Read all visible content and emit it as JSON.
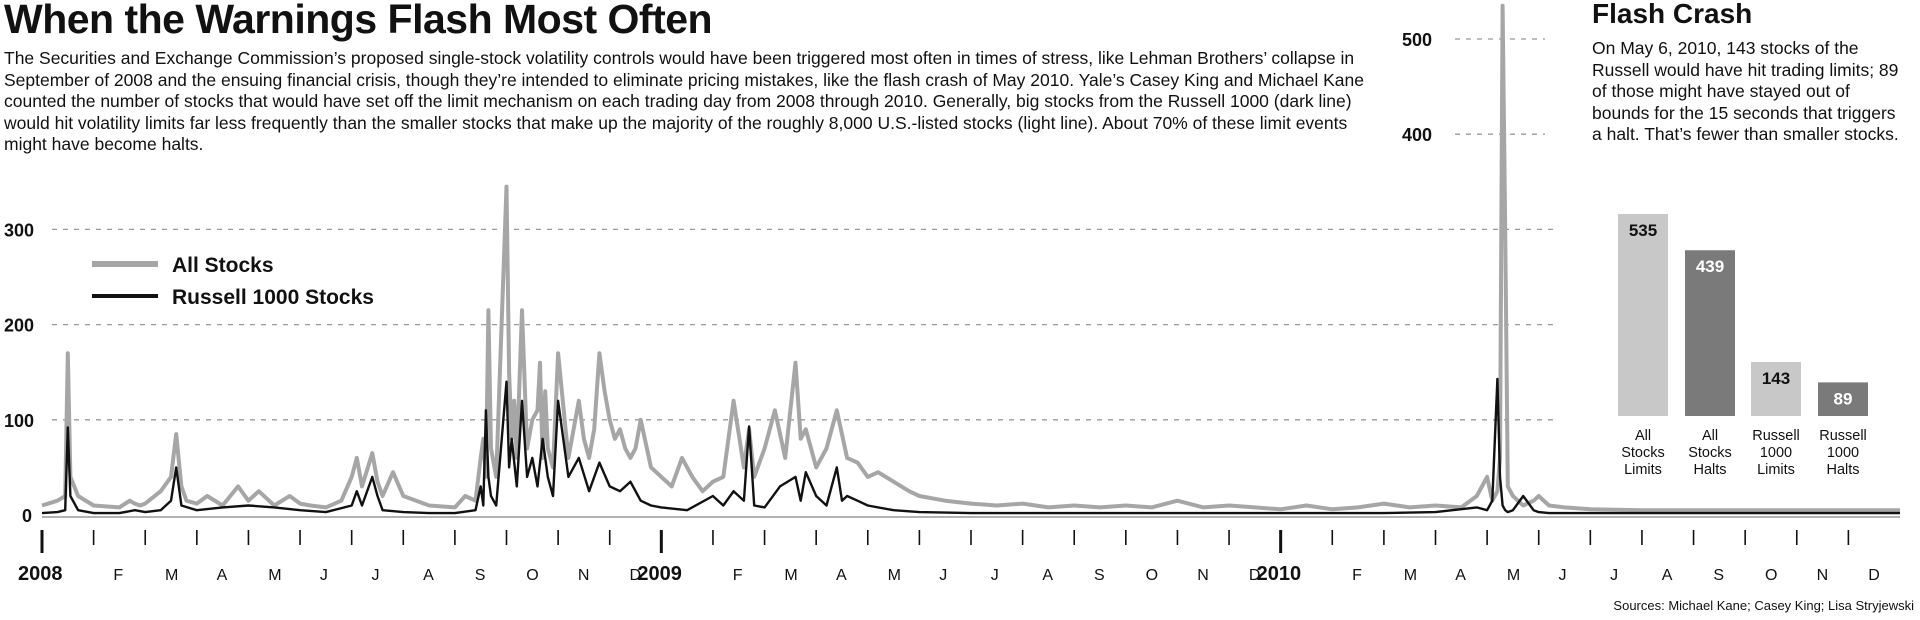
{
  "header": {
    "title": "When the Warnings Flash Most Often",
    "intro": "The Securities and Exchange Commission’s proposed single-stock volatility controls would have been triggered most often in times of stress, like Lehman Brothers’ collapse in September of 2008 and the ensuing financial crisis, though they’re intended to eliminate pricing mistakes, like the flash crash of May 2010. Yale’s Casey King and Michael Kane counted the number of stocks that would have set off the limit mechanism on each trading day from 2008 through 2010. Generally, big stocks from the Russell 1000 (dark line) would hit volatility limits far less frequently than the smaller stocks that make up the majority of the roughly 8,000 U.S.-listed stocks (light line). About 70% of these limit events might have become halts."
  },
  "sidebar": {
    "title": "Flash Crash",
    "text": "On May 6, 2010, 143 stocks of the Russell would have hit trading limits; 89 of those might have stayed out of bounds for the 15 seconds that triggers a halt. That’s fewer than smaller stocks."
  },
  "source": "Sources: Michael Kane; Casey King; Lisa Stryjewski",
  "colors": {
    "all_stocks": "#a6a6a6",
    "russell": "#111111",
    "grid": "#999999",
    "bar_light": "#c8c8c8",
    "bar_dark": "#7a7a7a"
  },
  "chart_data": [
    {
      "type": "line",
      "x_unit": "month",
      "ylim": [
        0,
        550
      ],
      "xlim": [
        0,
        36
      ],
      "grid": "horizontal dashed",
      "legend_position": "top-left",
      "yticks": [
        0,
        100,
        200,
        300,
        400,
        500
      ],
      "ytick_labels": [
        "0",
        "100",
        "200",
        "300",
        "400",
        "500"
      ],
      "xtick_labels": [
        "2008",
        "F",
        "M",
        "A",
        "M",
        "J",
        "J",
        "A",
        "S",
        "O",
        "N",
        "D",
        "2009",
        "F",
        "M",
        "A",
        "M",
        "J",
        "J",
        "A",
        "S",
        "O",
        "N",
        "D",
        "2010",
        "F",
        "M",
        "A",
        "M",
        "J",
        "J",
        "A",
        "S",
        "O",
        "N",
        "D"
      ],
      "series": [
        {
          "name": "All Stocks",
          "x": [
            0,
            0.3,
            0.45,
            0.5,
            0.55,
            0.7,
            1,
            1.5,
            1.7,
            1.8,
            1.9,
            2,
            2.3,
            2.5,
            2.6,
            2.7,
            2.8,
            3,
            3.2,
            3.5,
            3.8,
            4,
            4.2,
            4.5,
            4.8,
            5,
            5.2,
            5.5,
            5.8,
            6,
            6.1,
            6.2,
            6.4,
            6.5,
            6.6,
            6.8,
            7,
            7.5,
            8,
            8.2,
            8.4,
            8.5,
            8.55,
            8.6,
            8.65,
            8.7,
            8.8,
            9,
            9.05,
            9.1,
            9.15,
            9.2,
            9.3,
            9.4,
            9.5,
            9.6,
            9.65,
            9.7,
            9.75,
            9.8,
            9.9,
            10,
            10.2,
            10.4,
            10.5,
            10.6,
            10.7,
            10.8,
            10.9,
            11,
            11.1,
            11.2,
            11.3,
            11.4,
            11.5,
            11.6,
            11.8,
            12,
            12.2,
            12.4,
            12.6,
            12.8,
            13,
            13.2,
            13.4,
            13.6,
            13.7,
            13.8,
            14,
            14.2,
            14.4,
            14.6,
            14.7,
            14.8,
            15,
            15.2,
            15.4,
            15.6,
            15.8,
            16,
            16.2,
            16.5,
            16.8,
            17,
            17.5,
            18,
            18.5,
            19,
            19.5,
            20,
            20.5,
            21,
            21.5,
            22,
            22.5,
            23,
            23.5,
            24,
            24.5,
            25,
            25.5,
            26,
            26.5,
            27,
            27.5,
            27.8,
            28,
            28.1,
            28.2,
            28.25,
            28.3,
            28.35,
            28.4,
            28.5,
            28.7,
            28.9,
            29,
            29.2,
            29.5,
            30,
            31,
            32,
            33,
            33.5,
            34,
            35,
            36
          ],
          "y": [
            10,
            15,
            20,
            170,
            40,
            20,
            10,
            8,
            15,
            12,
            10,
            12,
            25,
            40,
            85,
            30,
            15,
            12,
            20,
            10,
            30,
            15,
            25,
            10,
            20,
            12,
            10,
            8,
            15,
            40,
            60,
            30,
            65,
            35,
            20,
            45,
            20,
            10,
            8,
            20,
            15,
            60,
            80,
            40,
            215,
            70,
            40,
            345,
            150,
            80,
            120,
            60,
            215,
            70,
            100,
            110,
            160,
            60,
            130,
            70,
            50,
            170,
            60,
            120,
            80,
            60,
            90,
            170,
            130,
            100,
            80,
            90,
            70,
            60,
            70,
            100,
            50,
            40,
            30,
            60,
            40,
            25,
            35,
            40,
            120,
            50,
            90,
            40,
            70,
            110,
            60,
            160,
            80,
            90,
            50,
            70,
            110,
            60,
            55,
            40,
            45,
            35,
            25,
            20,
            15,
            12,
            10,
            12,
            8,
            10,
            8,
            10,
            8,
            15,
            8,
            10,
            8,
            6,
            10,
            6,
            8,
            12,
            8,
            10,
            8,
            20,
            40,
            15,
            25,
            60,
            535,
            300,
            30,
            20,
            10,
            15,
            20,
            10,
            8,
            6,
            5,
            5,
            5,
            5,
            5,
            5,
            5
          ]
        },
        {
          "name": "Russell 1000 Stocks",
          "x": [
            0,
            0.3,
            0.45,
            0.5,
            0.55,
            0.7,
            1,
            1.5,
            1.8,
            2,
            2.3,
            2.5,
            2.6,
            2.7,
            3,
            3.5,
            4,
            4.5,
            5,
            5.5,
            6,
            6.1,
            6.2,
            6.4,
            6.5,
            6.6,
            7,
            7.5,
            8,
            8.4,
            8.5,
            8.55,
            8.6,
            8.65,
            8.7,
            8.8,
            9,
            9.05,
            9.1,
            9.2,
            9.3,
            9.4,
            9.5,
            9.6,
            9.7,
            9.8,
            9.9,
            10,
            10.2,
            10.4,
            10.6,
            10.8,
            11,
            11.2,
            11.4,
            11.6,
            11.8,
            12,
            12.5,
            13,
            13.2,
            13.4,
            13.6,
            13.7,
            13.8,
            14,
            14.3,
            14.6,
            14.7,
            14.8,
            15,
            15.2,
            15.4,
            15.5,
            15.6,
            15.8,
            16,
            16.5,
            17,
            18,
            19,
            20,
            21,
            22,
            23,
            24,
            25,
            26,
            27,
            27.8,
            28,
            28.1,
            28.2,
            28.25,
            28.3,
            28.35,
            28.4,
            28.5,
            28.7,
            28.9,
            29,
            29.2,
            29.5,
            30,
            31,
            32,
            33,
            33.5,
            34,
            35,
            36
          ],
          "y": [
            2,
            3,
            5,
            92,
            20,
            5,
            2,
            2,
            5,
            3,
            5,
            15,
            50,
            10,
            5,
            8,
            10,
            8,
            5,
            3,
            10,
            25,
            10,
            40,
            20,
            5,
            3,
            2,
            2,
            5,
            30,
            10,
            110,
            40,
            20,
            10,
            140,
            50,
            80,
            30,
            120,
            40,
            60,
            30,
            80,
            40,
            20,
            120,
            40,
            60,
            25,
            55,
            30,
            25,
            35,
            15,
            10,
            8,
            5,
            20,
            10,
            25,
            15,
            93,
            10,
            8,
            30,
            40,
            15,
            45,
            20,
            10,
            50,
            15,
            20,
            15,
            10,
            5,
            3,
            2,
            2,
            2,
            2,
            2,
            2,
            2,
            2,
            2,
            3,
            8,
            5,
            15,
            143,
            40,
            10,
            5,
            3,
            5,
            20,
            5,
            3,
            2,
            2,
            2,
            2,
            2,
            2,
            2,
            2,
            2,
            2
          ]
        }
      ]
    },
    {
      "type": "bar",
      "categories": [
        "All Stocks Limits",
        "All Stocks Halts",
        "Russell 1000 Limits",
        "Russell 1000 Halts"
      ],
      "category_lines": [
        [
          "All",
          "Stocks",
          "Limits"
        ],
        [
          "All",
          "Stocks",
          "Halts"
        ],
        [
          "Russell",
          "1000",
          "Limits"
        ],
        [
          "Russell",
          "1000",
          "Halts"
        ]
      ],
      "values": [
        535,
        439,
        143,
        89
      ],
      "value_labels": [
        "535",
        "439",
        "143",
        "89"
      ],
      "ylim": [
        0,
        535
      ]
    }
  ]
}
